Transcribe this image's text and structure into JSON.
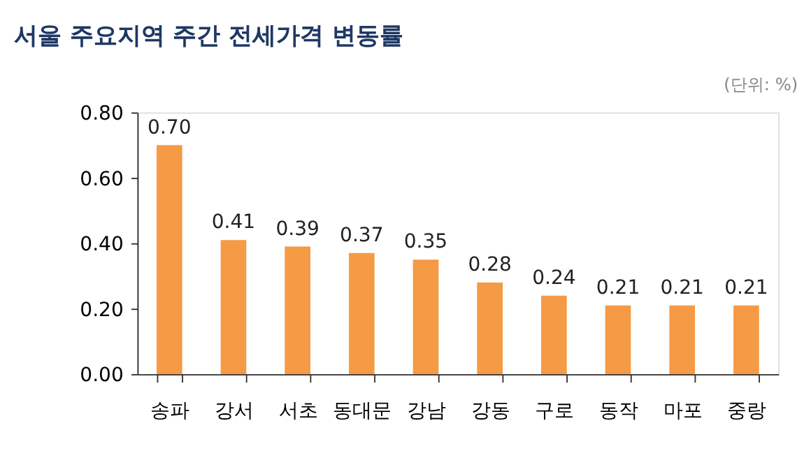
{
  "chart_data": {
    "type": "bar",
    "title": "서울 주요지역 주간 전세가격 변동률",
    "annotations": [
      "(단위: %)"
    ],
    "categories": [
      "송파",
      "강서",
      "서초",
      "동대문",
      "강남",
      "강동",
      "구로",
      "동작",
      "마포",
      "중랑"
    ],
    "values": [
      0.7,
      0.41,
      0.39,
      0.37,
      0.35,
      0.28,
      0.24,
      0.21,
      0.21,
      0.21
    ],
    "value_labels": [
      "0.70",
      "0.41",
      "0.39",
      "0.37",
      "0.35",
      "0.28",
      "0.24",
      "0.21",
      "0.21",
      "0.21"
    ],
    "color": "#f59a45",
    "ylim": [
      0,
      0.8
    ],
    "yticks": [
      {
        "value": 0,
        "label": "0.00"
      },
      {
        "value": 0.2,
        "label": "0.20"
      },
      {
        "value": 0.4,
        "label": "0.40"
      },
      {
        "value": 0.6,
        "label": "0.60"
      },
      {
        "value": 0.8,
        "label": "0.80"
      }
    ],
    "grid": false
  }
}
